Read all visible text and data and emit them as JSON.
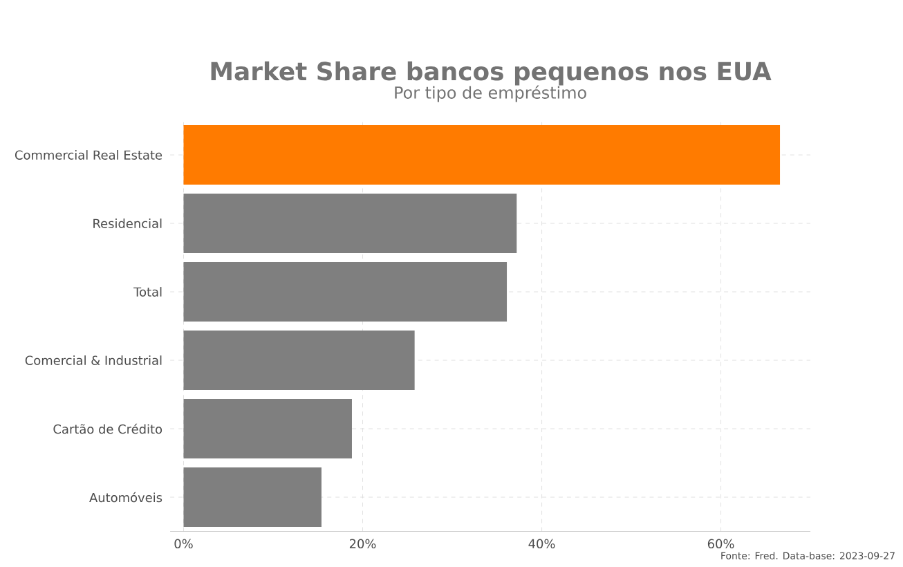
{
  "chart_data": {
    "type": "bar",
    "orientation": "horizontal",
    "title": "Market Share bancos pequenos nos EUA",
    "subtitle": "Por tipo de empréstimo",
    "categories": [
      "Commercial Real Estate",
      "Residencial",
      "Total",
      "Comercial & Industrial",
      "Cartão de Crédito",
      "Automóveis"
    ],
    "values": [
      66.6,
      37.2,
      36.1,
      25.8,
      18.8,
      15.4
    ],
    "colors": [
      "#ff7b00",
      "#7f7f7f",
      "#7f7f7f",
      "#7f7f7f",
      "#7f7f7f",
      "#7f7f7f"
    ],
    "xlim": [
      -1.5,
      70
    ],
    "xticks": [
      {
        "value": 0,
        "label": "0%"
      },
      {
        "value": 20,
        "label": "20%"
      },
      {
        "value": 40,
        "label": "40%"
      },
      {
        "value": 60,
        "label": "60%"
      }
    ],
    "grid": true,
    "annotations": [
      "Fonte: Fred. Data-base: 2023-09-27"
    ]
  }
}
